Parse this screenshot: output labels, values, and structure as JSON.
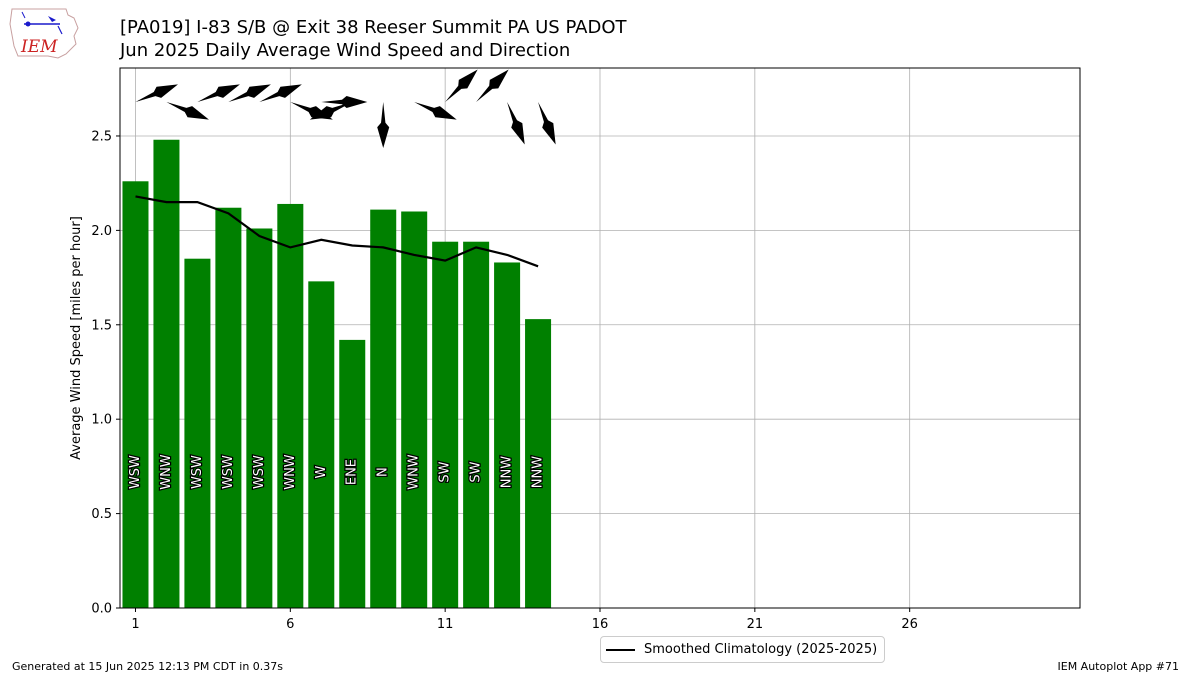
{
  "logo": {
    "text": "IEM"
  },
  "titles": {
    "line1": "[PA019] I-83 S/B @ Exit 38 Reeser Summit PA US  PADOT",
    "line2": "Jun 2025 Daily Average Wind Speed and Direction"
  },
  "chart_data": {
    "type": "bar",
    "ylabel": "Average Wind Speed [miles per hour]",
    "xlim": [
      0.5,
      31.5
    ],
    "ylim": [
      0,
      2.86
    ],
    "xticks": [
      1,
      6,
      11,
      16,
      21,
      26
    ],
    "yticks": [
      0.0,
      0.5,
      1.0,
      1.5,
      2.0,
      2.5
    ],
    "ytick_labels": [
      "0.0",
      "0.5",
      "1.0",
      "1.5",
      "2.0",
      "2.5"
    ],
    "grid": true,
    "bar_color": "#008000",
    "bars": {
      "name": "Average Wind Speed",
      "days": [
        1,
        2,
        3,
        4,
        5,
        6,
        7,
        8,
        9,
        10,
        11,
        12,
        13,
        14
      ],
      "values": [
        2.26,
        2.48,
        1.85,
        2.12,
        2.01,
        2.14,
        1.73,
        1.42,
        2.11,
        2.1,
        1.94,
        1.94,
        1.83,
        1.53
      ],
      "direction_labels": [
        "WSW",
        "WNW",
        "WSW",
        "WSW",
        "WSW",
        "WNW",
        "W",
        "ENE",
        "N",
        "WNW",
        "SW",
        "SW",
        "NNW",
        "NNW"
      ],
      "direction_degrees": [
        247.5,
        292.5,
        247.5,
        247.5,
        247.5,
        292.5,
        270,
        67.5,
        0,
        292.5,
        225,
        225,
        337.5,
        337.5
      ]
    },
    "climatology": {
      "name": "Smoothed Climatology (2025-2025)",
      "days": [
        1,
        2,
        3,
        4,
        5,
        6,
        7,
        8,
        9,
        10,
        11,
        12,
        13,
        14
      ],
      "values": [
        2.18,
        2.15,
        2.15,
        2.09,
        1.97,
        1.91,
        1.95,
        1.92,
        1.91,
        1.87,
        1.84,
        1.91,
        1.87,
        1.81
      ]
    },
    "legend_position": "below"
  },
  "footer": {
    "left": "Generated at 15 Jun 2025 12:13 PM CDT in 0.37s",
    "right": "IEM Autoplot App #71"
  }
}
